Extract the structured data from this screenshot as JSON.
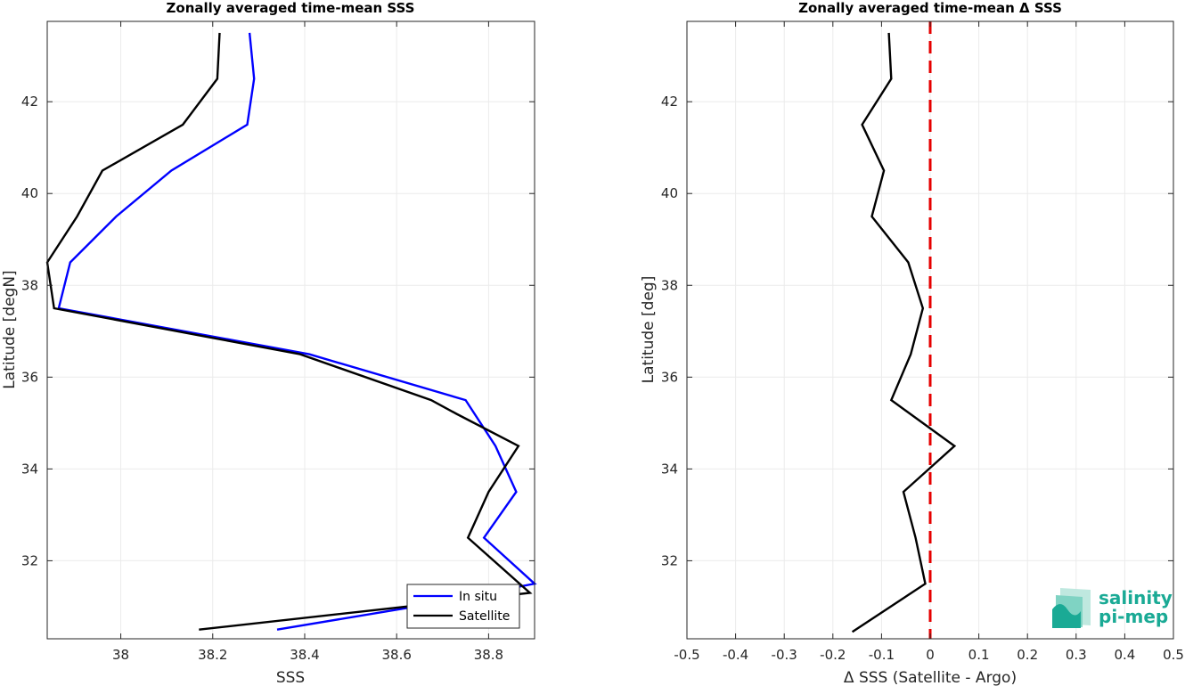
{
  "chart_data": [
    {
      "type": "line",
      "title": "Zonally averaged time-mean SSS",
      "xlabel": "SSS",
      "ylabel": "Latitude [degN]",
      "xlim": [
        37.84,
        38.9
      ],
      "ylim": [
        30.3,
        43.75
      ],
      "xticks": [
        38,
        38.2,
        38.4,
        38.6,
        38.8
      ],
      "xtick_labels": [
        "38",
        "38.2",
        "38.4",
        "38.6",
        "38.8"
      ],
      "yticks": [
        32,
        34,
        36,
        38,
        40,
        42
      ],
      "ytick_labels": [
        "32",
        "34",
        "36",
        "38",
        "40",
        "42"
      ],
      "grid": true,
      "legend_position": "bottom-right",
      "series": [
        {
          "name": "In situ",
          "color": "#0000ff",
          "x": [
            38.34,
            38.64,
            38.9,
            38.79,
            38.86,
            38.815,
            38.75,
            38.41,
            37.865,
            37.89,
            37.99,
            38.11,
            38.275,
            38.29,
            38.28
          ],
          "y": [
            30.5,
            31.0,
            31.5,
            32.5,
            33.5,
            34.5,
            35.5,
            36.5,
            37.5,
            38.5,
            39.5,
            40.5,
            41.5,
            42.5,
            43.5
          ]
        },
        {
          "name": "Satellite",
          "color": "#000000",
          "x": [
            38.17,
            38.89,
            38.755,
            38.8,
            38.865,
            38.73,
            38.675,
            38.39,
            37.855,
            37.84,
            37.905,
            37.96,
            38.135,
            38.21,
            38.215
          ],
          "y": [
            30.5,
            31.3,
            32.5,
            33.5,
            34.5,
            35.2,
            35.5,
            36.5,
            37.5,
            38.5,
            39.5,
            40.5,
            41.5,
            42.5,
            43.5
          ]
        }
      ]
    },
    {
      "type": "line",
      "title": "Zonally averaged time-mean Δ SSS",
      "xlabel": "Δ SSS (Satellite - Argo)",
      "ylabel": "Latitude [deg]",
      "xlim": [
        -0.5,
        0.5
      ],
      "ylim": [
        30.3,
        43.75
      ],
      "xticks": [
        -0.5,
        -0.4,
        -0.3,
        -0.2,
        -0.1,
        0,
        0.1,
        0.2,
        0.3,
        0.4,
        0.5
      ],
      "xtick_labels": [
        "-0.5",
        "-0.4",
        "-0.3",
        "-0.2",
        "-0.1",
        "0",
        "0.1",
        "0.2",
        "0.3",
        "0.4",
        "0.5"
      ],
      "yticks": [
        32,
        34,
        36,
        38,
        40,
        42
      ],
      "ytick_labels": [
        "32",
        "34",
        "36",
        "38",
        "40",
        "42"
      ],
      "grid": true,
      "series": [
        {
          "color": "#000000",
          "x": [
            -0.16,
            -0.01,
            -0.03,
            -0.055,
            0.05,
            -0.08,
            -0.04,
            -0.015,
            -0.045,
            -0.12,
            -0.095,
            -0.14,
            -0.08,
            -0.085
          ],
          "y": [
            30.45,
            31.5,
            32.5,
            33.5,
            34.5,
            35.5,
            36.5,
            37.5,
            38.5,
            39.5,
            40.5,
            41.5,
            42.5,
            43.5
          ]
        }
      ],
      "reference_line": {
        "x": 0,
        "color": "#e60000",
        "style": "dashed"
      }
    }
  ],
  "logo": {
    "line1": "salinity",
    "line2": "pi-mep",
    "color": "#1aaa95"
  }
}
